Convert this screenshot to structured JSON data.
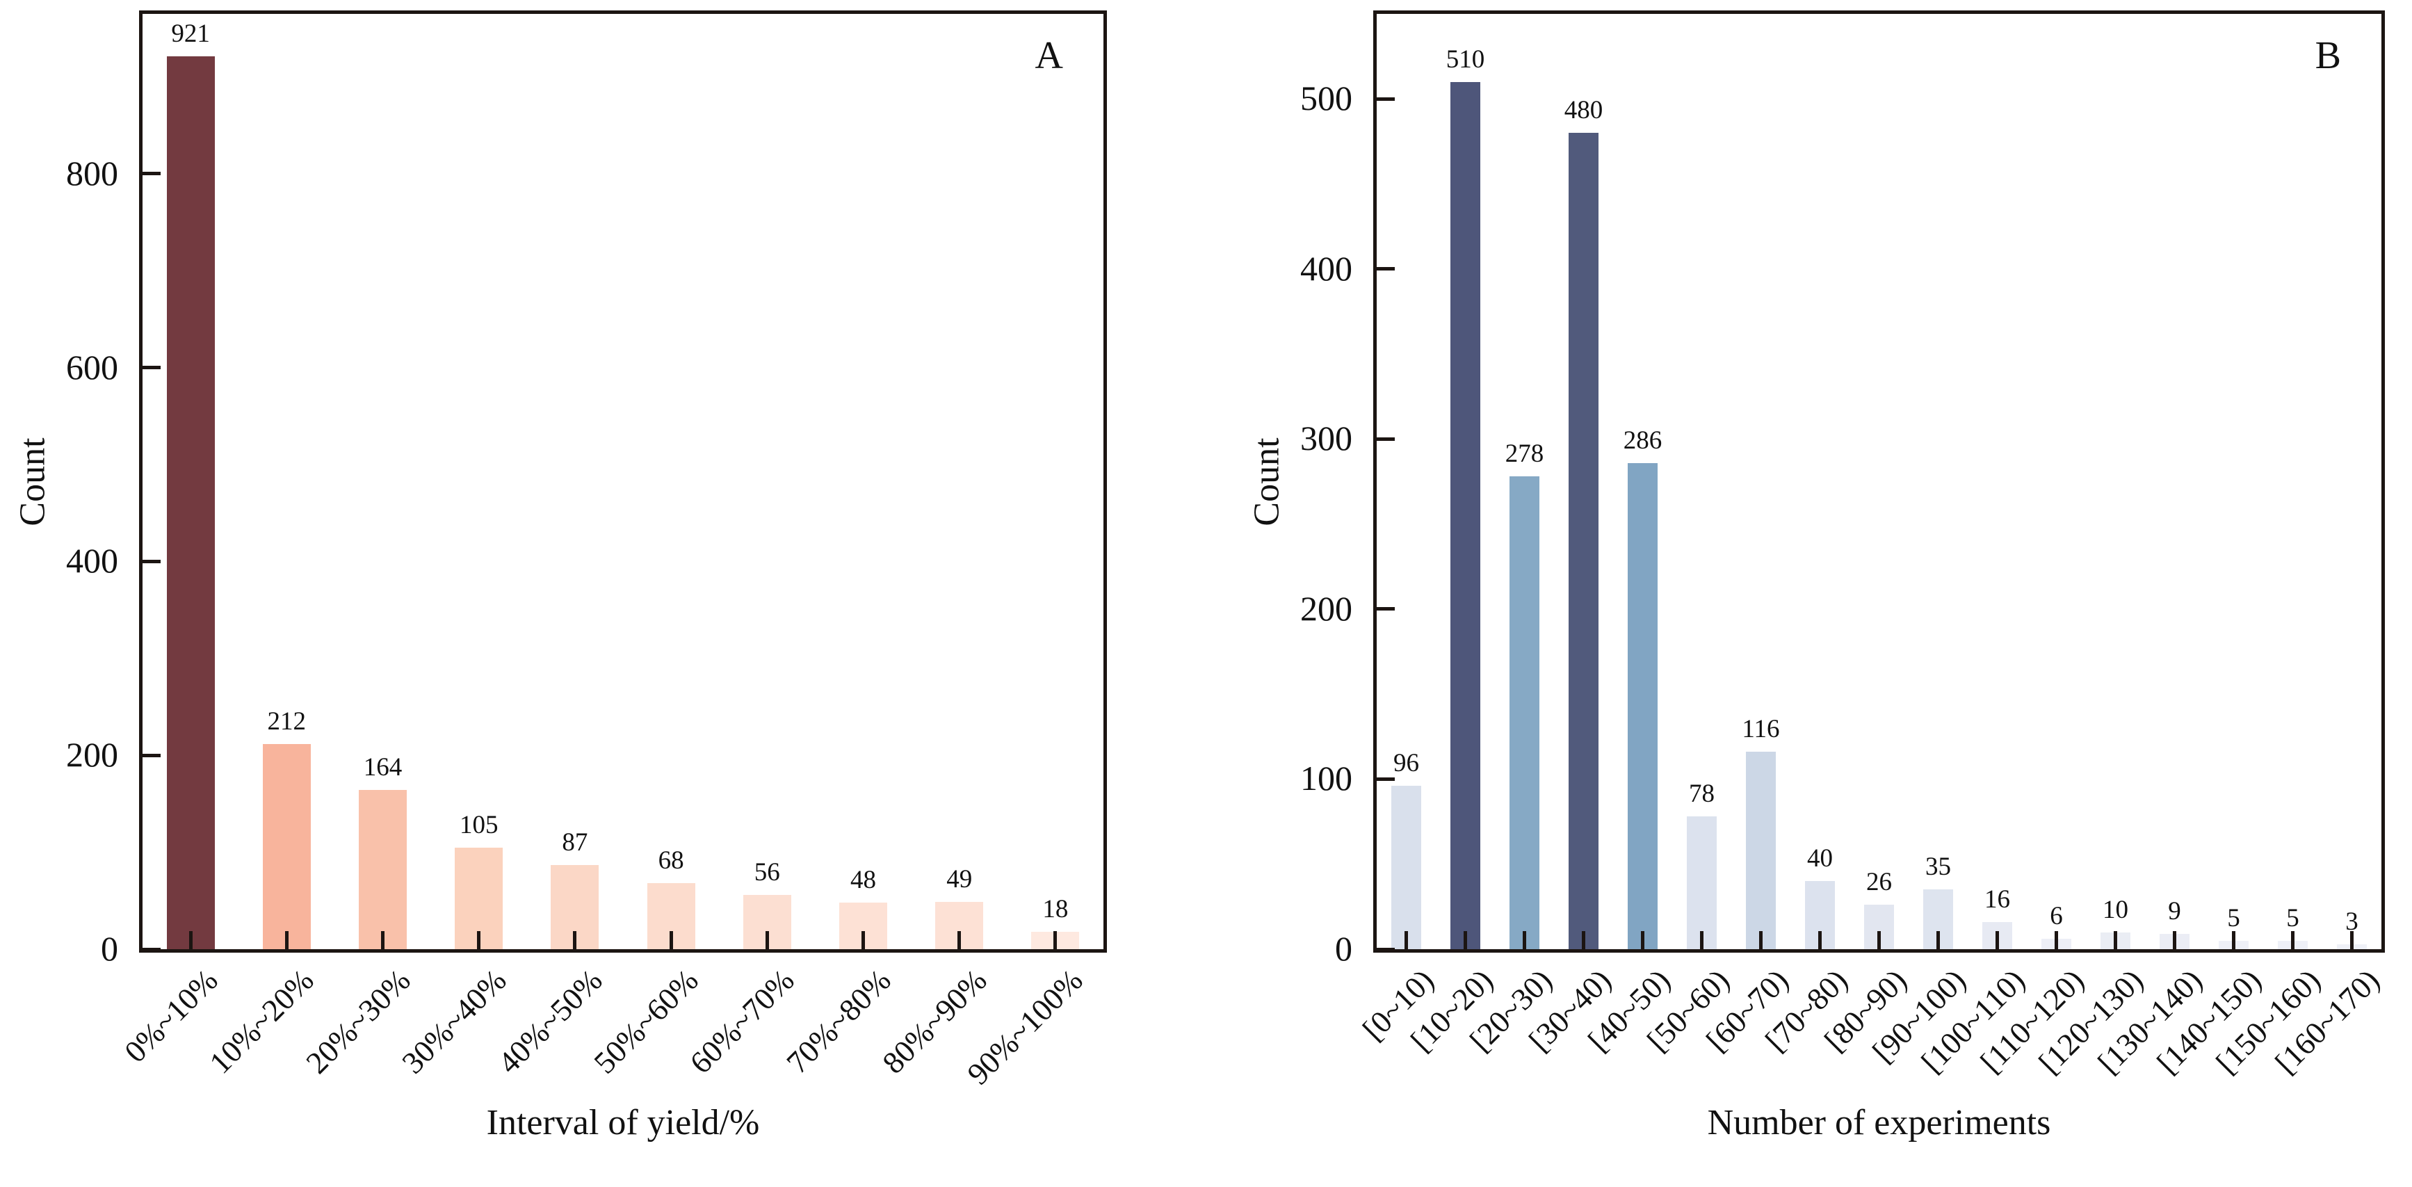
{
  "figure": {
    "background": "#ffffff",
    "axis_color": "#1c1512",
    "text_color": "#111111"
  },
  "chart_data": [
    {
      "id": "A",
      "type": "bar",
      "panel_label": "A",
      "xlabel": "Interval of yield/%",
      "ylabel": "Count",
      "categories": [
        "0%~10%",
        "10%~20%",
        "20%~30%",
        "30%~40%",
        "40%~50%",
        "50%~60%",
        "60%~70%",
        "70%~80%",
        "80%~90%",
        "90%~100%"
      ],
      "values": [
        921,
        212,
        164,
        105,
        87,
        68,
        56,
        48,
        49,
        18
      ],
      "bar_colors": [
        "#733a40",
        "#f8b49c",
        "#f9c1aa",
        "#fbd2bd",
        "#fbd7c6",
        "#fcdccd",
        "#fcdfd2",
        "#fde1d5",
        "#fde1d5",
        "#fee9e0"
      ],
      "yticks": [
        0,
        200,
        400,
        600,
        800
      ],
      "ylim": [
        0,
        965
      ],
      "grid": false,
      "legend_position": "none",
      "value_labels": true
    },
    {
      "id": "B",
      "type": "bar",
      "panel_label": "B",
      "xlabel": "Number of experiments",
      "ylabel": "Count",
      "categories": [
        "[0~10)",
        "[10~20)",
        "[20~30)",
        "[30~40)",
        "[40~50)",
        "[50~60)",
        "[60~70)",
        "[70~80)",
        "[80~90)",
        "[90~100)",
        "[100~110)",
        "[110~120)",
        "[120~130)",
        "[130~140)",
        "[140~150)",
        "[150~160)",
        "[160~170)"
      ],
      "values": [
        96,
        510,
        278,
        480,
        286,
        78,
        116,
        40,
        26,
        35,
        16,
        6,
        10,
        9,
        5,
        5,
        3
      ],
      "bar_colors": [
        "#d9e0ec",
        "#4e567a",
        "#86a9c5",
        "#515a7c",
        "#81a5c3",
        "#dce2ee",
        "#ccd7e6",
        "#dce2ee",
        "#e2e6f0",
        "#dee4ef",
        "#e7eaf3",
        "#edeff6",
        "#eaedf4",
        "#ebedf5",
        "#eef0f7",
        "#eef0f7",
        "#eff1f7"
      ],
      "yticks": [
        0,
        100,
        200,
        300,
        400,
        500
      ],
      "ylim": [
        0,
        550
      ],
      "grid": false,
      "legend_position": "none",
      "value_labels": true
    }
  ]
}
